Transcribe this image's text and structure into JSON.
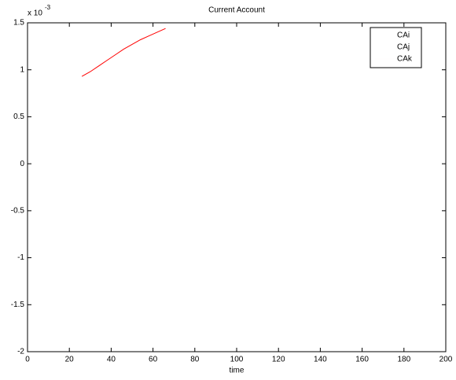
{
  "chart_data": {
    "type": "line",
    "title": "Current Account",
    "xlabel": "time",
    "y_exponent_base": "x 10",
    "y_exponent": "-3",
    "x": [
      26,
      30,
      34,
      38,
      42,
      46,
      50,
      54,
      58,
      62,
      66
    ],
    "series": [
      {
        "name": "CAi",
        "values": [
          null,
          null,
          null,
          null,
          null,
          null,
          null,
          null,
          null,
          null,
          null
        ]
      },
      {
        "name": "CAj",
        "values": [
          null,
          null,
          null,
          null,
          null,
          null,
          null,
          null,
          null,
          null,
          null
        ]
      },
      {
        "name": "CAk",
        "color": "#ff0000",
        "values": [
          0.93,
          0.98,
          1.04,
          1.1,
          1.16,
          1.22,
          1.27,
          1.32,
          1.36,
          1.4,
          1.44
        ]
      }
    ],
    "xlim": [
      0,
      200
    ],
    "xticks": [
      0,
      20,
      40,
      60,
      80,
      100,
      120,
      140,
      160,
      180,
      200
    ],
    "ylim": [
      -2,
      1.5
    ],
    "yticks": [
      -2,
      -1.5,
      -1,
      -0.5,
      0,
      0.5,
      1,
      1.5
    ],
    "grid": false,
    "legend": "upper right"
  }
}
